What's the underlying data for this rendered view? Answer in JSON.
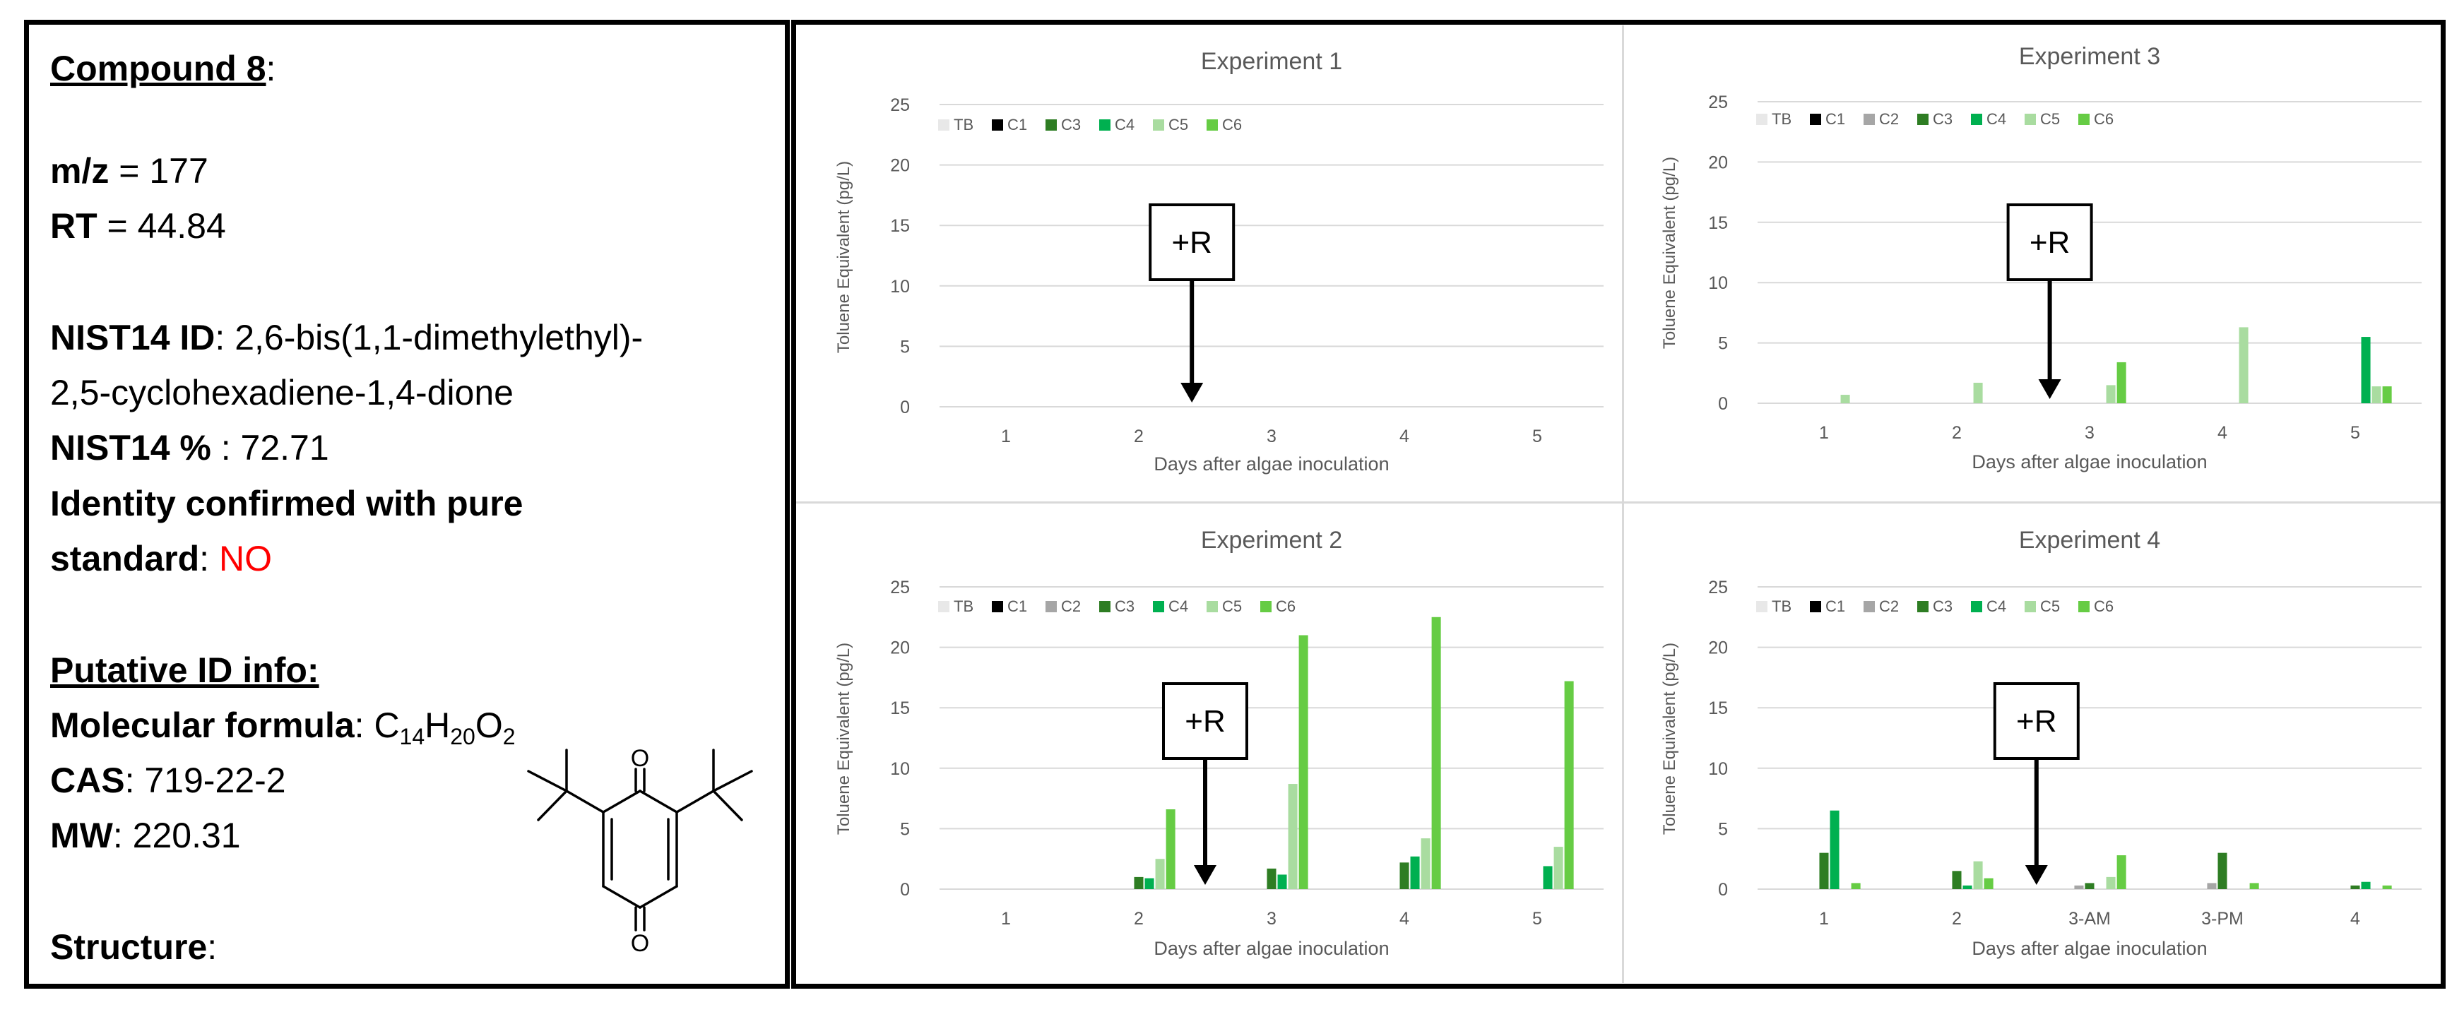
{
  "left": {
    "compound_title": "Compound 8",
    "mz_label": "m/z",
    "mz_value": "177",
    "rt_label": "RT",
    "rt_value": "44.84",
    "nist_id_label": "NIST14 ID",
    "nist_id_line1": "2,6-bis(1,1-dimethylethyl)-",
    "nist_id_line2": "2,5-cyclohexadiene-1,4-dione",
    "nist_pct_label": "NIST14 %",
    "nist_pct_value": "72.71",
    "identity_line1": "Identity confirmed with pure",
    "identity_line2": "standard",
    "identity_value": "NO",
    "putative_title": "Putative ID info:",
    "formula_label": "Molecular formula",
    "formula_c": "C",
    "formula_c_n": "14",
    "formula_h": "H",
    "formula_h_n": "20",
    "formula_o": "O",
    "formula_o_n": "2",
    "cas_label": "CAS",
    "cas_value": "719-22-2",
    "mw_label": "MW",
    "mw_value": "220.31",
    "structure_label": "Structure",
    "structure_atom_top": "O",
    "structure_atom_bottom": "O"
  },
  "colors": {
    "TB": "#e8e8e8",
    "C1": "#000000",
    "C2": "#a6a6a6",
    "C3": "#2e7d23",
    "C4": "#00b050",
    "C5": "#a9dca0",
    "C6": "#66cc44",
    "grid": "#d9d9d9",
    "axis_text": "#595959",
    "red": "#ff0000"
  },
  "chart_data": [
    {
      "type": "bar",
      "title": "Experiment 1",
      "xlabel": "Days after algae inoculation",
      "ylabel": "Toluene Equivalent (pg/L)",
      "ylim": [
        0,
        25
      ],
      "yticks": [
        "0",
        "5",
        "10",
        "15",
        "20",
        "25"
      ],
      "categories": [
        "1",
        "2",
        "3",
        "4",
        "5"
      ],
      "annotation": "+R",
      "annotation_position": 2.4,
      "series": [
        {
          "name": "TB",
          "values": [
            0,
            0,
            0,
            0,
            0
          ]
        },
        {
          "name": "C1",
          "values": [
            0,
            0,
            0,
            0,
            0
          ]
        },
        {
          "name": "C3",
          "values": [
            0,
            0,
            0,
            0,
            0
          ]
        },
        {
          "name": "C4",
          "values": [
            0,
            0,
            0,
            0,
            0
          ]
        },
        {
          "name": "C5",
          "values": [
            0,
            0,
            0,
            0,
            0
          ]
        },
        {
          "name": "C6",
          "values": [
            0,
            0,
            0,
            0,
            0
          ]
        }
      ]
    },
    {
      "type": "bar",
      "title": "Experiment 3",
      "xlabel": "Days after algae inoculation",
      "ylabel": "Toluene Equivalent (pg/L)",
      "ylim": [
        0,
        25
      ],
      "yticks": [
        "0",
        "5",
        "10",
        "15",
        "20",
        "25"
      ],
      "categories": [
        "1",
        "2",
        "3",
        "4",
        "5"
      ],
      "annotation": "+R",
      "annotation_position": 2.7,
      "series": [
        {
          "name": "TB",
          "values": [
            0,
            0,
            0,
            0,
            0
          ]
        },
        {
          "name": "C1",
          "values": [
            0,
            0,
            0,
            0,
            0
          ]
        },
        {
          "name": "C2",
          "values": [
            0,
            0,
            0,
            0,
            0
          ]
        },
        {
          "name": "C3",
          "values": [
            0,
            0,
            0,
            0,
            0
          ]
        },
        {
          "name": "C4",
          "values": [
            0,
            0,
            0,
            0,
            5.5
          ]
        },
        {
          "name": "C5",
          "values": [
            0.7,
            1.7,
            1.5,
            6.3,
            1.4
          ]
        },
        {
          "name": "C6",
          "values": [
            0,
            0,
            3.4,
            0,
            1.4
          ]
        }
      ]
    },
    {
      "type": "bar",
      "title": "Experiment 2",
      "xlabel": "Days after algae inoculation",
      "ylabel": "Toluene Equivalent (pg/L)",
      "ylim": [
        0,
        25
      ],
      "yticks": [
        "0",
        "5",
        "10",
        "15",
        "20",
        "25"
      ],
      "categories": [
        "1",
        "2",
        "3",
        "4",
        "5"
      ],
      "annotation": "+R",
      "annotation_position": 2.5,
      "series": [
        {
          "name": "TB",
          "values": [
            0,
            0,
            0,
            0,
            0
          ]
        },
        {
          "name": "C1",
          "values": [
            0,
            0,
            0,
            0,
            0
          ]
        },
        {
          "name": "C2",
          "values": [
            0,
            0,
            0,
            0,
            0
          ]
        },
        {
          "name": "C3",
          "values": [
            0,
            1.0,
            1.7,
            2.2,
            0
          ]
        },
        {
          "name": "C4",
          "values": [
            0,
            0.9,
            1.2,
            2.7,
            1.9
          ]
        },
        {
          "name": "C5",
          "values": [
            0,
            2.5,
            8.7,
            4.2,
            3.5
          ]
        },
        {
          "name": "C6",
          "values": [
            0,
            6.6,
            21.0,
            22.5,
            17.2
          ]
        }
      ]
    },
    {
      "type": "bar",
      "title": "Experiment 4",
      "xlabel": "Days after algae inoculation",
      "ylabel": "Toluene Equivalent (pg/L)",
      "ylim": [
        0,
        25
      ],
      "yticks": [
        "0",
        "5",
        "10",
        "15",
        "20",
        "25"
      ],
      "categories": [
        "1",
        "2",
        "3-AM",
        "3-PM",
        "4"
      ],
      "annotation": "+R",
      "annotation_position": 2.6,
      "series": [
        {
          "name": "TB",
          "values": [
            0,
            0,
            0,
            0,
            0
          ]
        },
        {
          "name": "C1",
          "values": [
            0,
            0,
            0,
            0,
            0
          ]
        },
        {
          "name": "C2",
          "values": [
            0,
            0,
            0.3,
            0.5,
            0
          ]
        },
        {
          "name": "C3",
          "values": [
            3.0,
            1.5,
            0.5,
            3.0,
            0.3
          ]
        },
        {
          "name": "C4",
          "values": [
            6.5,
            0.3,
            0,
            0,
            0.6
          ]
        },
        {
          "name": "C5",
          "values": [
            0,
            2.3,
            1.0,
            0,
            0
          ]
        },
        {
          "name": "C6",
          "values": [
            0.5,
            0.9,
            2.8,
            0.5,
            0.3
          ]
        }
      ]
    }
  ]
}
